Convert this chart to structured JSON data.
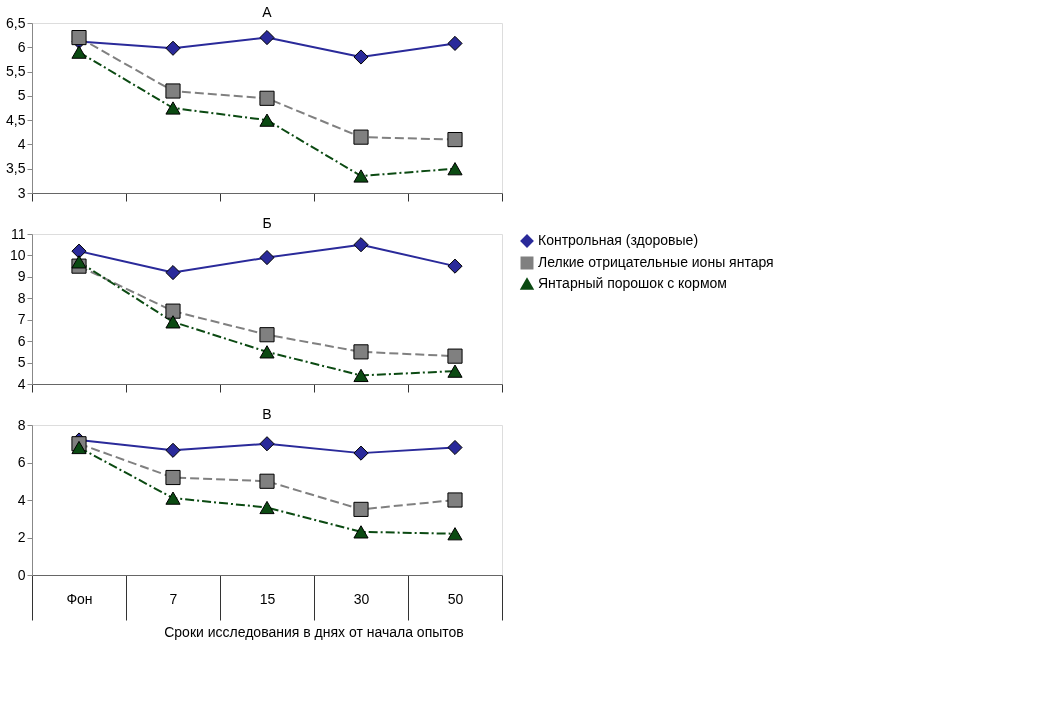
{
  "chart_data": [
    {
      "type": "line",
      "title": "А",
      "categories": [
        null,
        null,
        null,
        null,
        null
      ],
      "tick_labels": "y",
      "legend": false,
      "grid": false,
      "ylim": [
        3,
        6.5
      ],
      "yticks": [
        3,
        {
          "value": 3.5,
          "label": "3,5"
        },
        4,
        {
          "value": 4.5,
          "label": "4,5"
        },
        5,
        {
          "value": 5.5,
          "label": "5,5"
        },
        6,
        {
          "value": 6.5,
          "label": "6,5"
        }
      ],
      "series": [
        {
          "color": "#2a2a9a",
          "marker": "diamond",
          "line_style": "solid",
          "values": [
            6.12,
            5.98,
            6.2,
            5.8,
            6.08
          ]
        },
        {
          "color": "#808080",
          "marker": "square",
          "line_style": "dashed",
          "values": [
            6.2,
            5.1,
            4.95,
            4.15,
            4.1
          ]
        },
        {
          "color": "#0b4a12",
          "marker": "triangle",
          "line_style": "dashdot",
          "values": [
            5.9,
            4.75,
            4.5,
            3.35,
            3.5
          ]
        }
      ]
    },
    {
      "type": "line",
      "title": "Б",
      "categories": [
        null,
        null,
        null,
        null,
        null
      ],
      "tick_labels": "y",
      "legend": "right",
      "grid": false,
      "ylim": [
        4,
        11
      ],
      "yticks": [
        4,
        5,
        6,
        7,
        8,
        9,
        10,
        11
      ],
      "series": [
        {
          "name": "Контрольная (здоровые)",
          "color": "#2a2a9a",
          "marker": "diamond",
          "line_style": "solid",
          "values": [
            10.2,
            9.2,
            9.9,
            10.5,
            9.5
          ]
        },
        {
          "name": "Лелкие отрицательные ионы янтаря",
          "color": "#808080",
          "marker": "square",
          "line_style": "dashed",
          "values": [
            9.5,
            7.4,
            6.3,
            5.5,
            5.3
          ]
        },
        {
          "name": "Янтарный порошок с кормом",
          "color": "#0b4a12",
          "marker": "triangle",
          "line_style": "dashdot",
          "values": [
            9.7,
            6.9,
            5.5,
            4.4,
            4.6
          ]
        }
      ]
    },
    {
      "type": "line",
      "title": "В",
      "categories": [
        "Фон",
        "7",
        "15",
        "30",
        "50"
      ],
      "legend": false,
      "grid": false,
      "ylim": [
        0,
        8
      ],
      "yticks": [
        0,
        2,
        4,
        6,
        8
      ],
      "annotations": [
        "Сроки исследования в днях от начала опытов"
      ],
      "series": [
        {
          "color": "#2a2a9a",
          "marker": "diamond",
          "line_style": "solid",
          "values": [
            7.2,
            6.65,
            7.0,
            6.5,
            6.8
          ]
        },
        {
          "color": "#808080",
          "marker": "square",
          "line_style": "dashed",
          "values": [
            7.0,
            5.2,
            5.0,
            3.5,
            4.0
          ]
        },
        {
          "color": "#0b4a12",
          "marker": "triangle",
          "line_style": "dashdot",
          "values": [
            6.8,
            4.1,
            3.6,
            2.3,
            2.2
          ]
        }
      ]
    }
  ]
}
